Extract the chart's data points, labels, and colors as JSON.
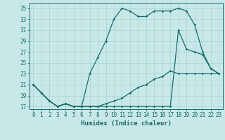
{
  "title": "",
  "xlabel": "Humidex (Indice chaleur)",
  "bg_color": "#c8e8e8",
  "line_color": "#1a6b6b",
  "grid_color": "#a0cccc",
  "xlim": [
    -0.5,
    23.5
  ],
  "ylim": [
    16.5,
    36
  ],
  "yticks": [
    17,
    19,
    21,
    23,
    25,
    27,
    29,
    31,
    33,
    35
  ],
  "xticks": [
    0,
    1,
    2,
    3,
    4,
    5,
    6,
    7,
    8,
    9,
    10,
    11,
    12,
    13,
    14,
    15,
    16,
    17,
    18,
    19,
    20,
    21,
    22,
    23
  ],
  "curve1_x": [
    0,
    1,
    2,
    3,
    4,
    5,
    6,
    7,
    8,
    9,
    10,
    11,
    12,
    13,
    14,
    15,
    16,
    17,
    18,
    19,
    20,
    21,
    22,
    23
  ],
  "curve1_y": [
    21,
    19.5,
    18,
    17,
    17.5,
    17,
    17,
    23,
    26,
    29,
    33,
    35,
    34.5,
    33.5,
    33.5,
    34.5,
    34.5,
    34.5,
    35,
    34.5,
    32,
    27,
    24,
    23
  ],
  "curve2_x": [
    0,
    1,
    2,
    3,
    4,
    5,
    6,
    7,
    8,
    9,
    10,
    11,
    12,
    13,
    14,
    15,
    16,
    17,
    18,
    19,
    20,
    21,
    22,
    23
  ],
  "curve2_y": [
    21,
    19.5,
    18,
    17,
    17.5,
    17,
    17,
    17,
    17,
    17,
    17,
    17,
    17,
    17,
    17,
    17,
    17,
    17,
    31,
    27.5,
    27,
    26.5,
    24,
    23
  ],
  "curve3_x": [
    0,
    1,
    2,
    3,
    4,
    5,
    6,
    7,
    8,
    9,
    10,
    11,
    12,
    13,
    14,
    15,
    16,
    17,
    18,
    19,
    20,
    21,
    22,
    23
  ],
  "curve3_y": [
    21,
    19.5,
    18,
    17,
    17.5,
    17,
    17,
    17,
    17,
    17.5,
    18,
    18.5,
    19.5,
    20.5,
    21,
    22,
    22.5,
    23.5,
    23,
    23,
    23,
    23,
    23,
    23
  ],
  "tick_fontsize": 5.5,
  "xlabel_fontsize": 6.5,
  "marker_size": 1.8,
  "line_width": 0.9
}
